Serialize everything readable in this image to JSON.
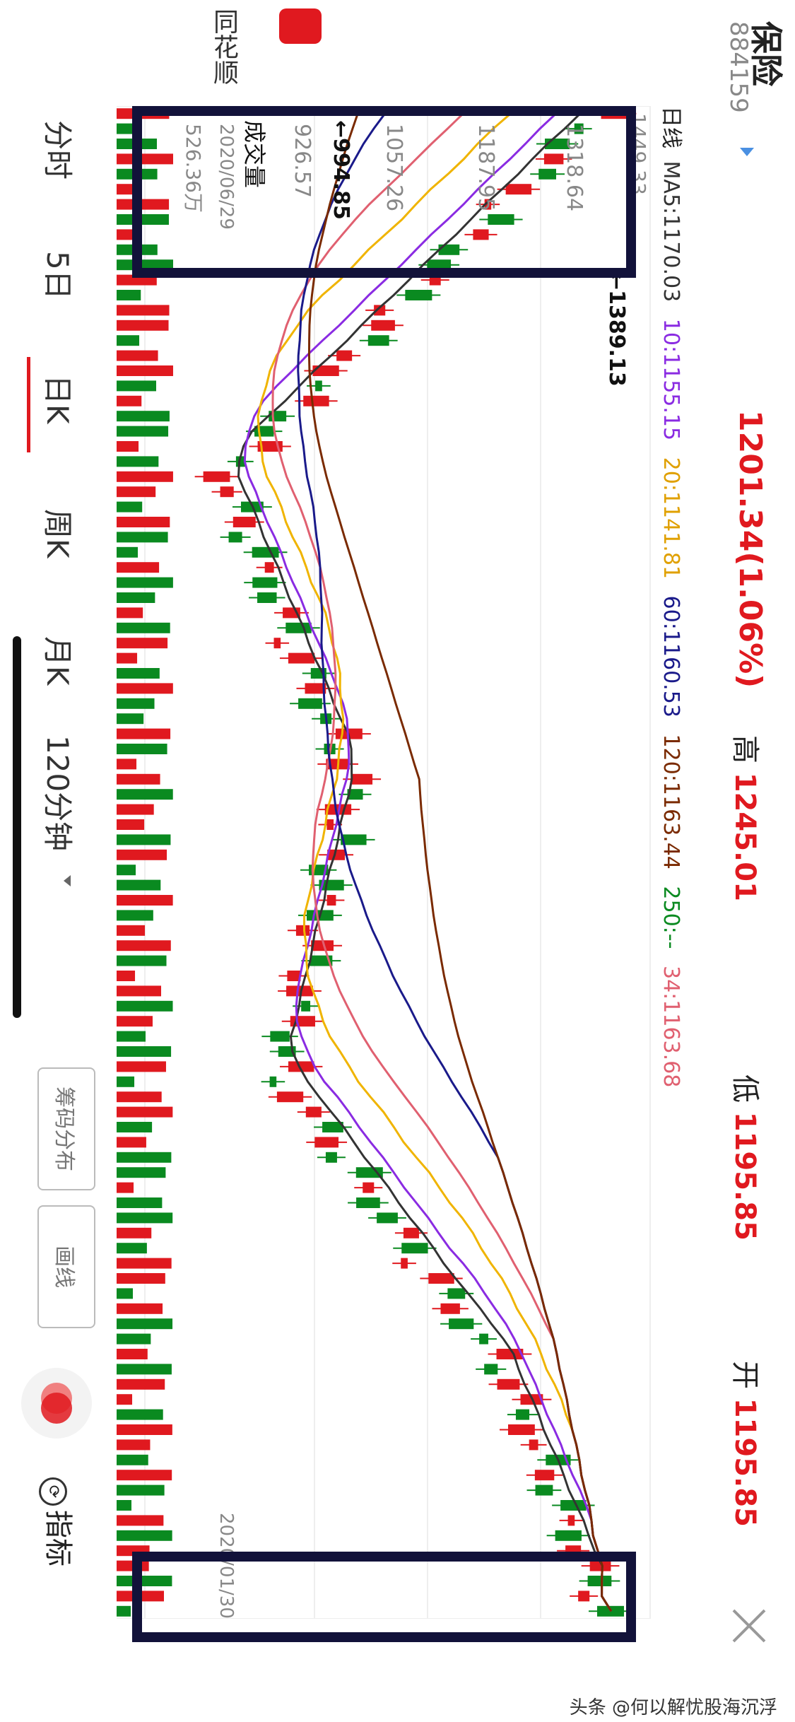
{
  "app": {
    "name": "同花顺"
  },
  "header": {
    "stock_name": "保险",
    "stock_code": "884159",
    "price": "1201.34(1.06%)",
    "high_label": "高",
    "high_value": "1245.01",
    "low_label": "低",
    "low_value": "1195.85",
    "open_label": "开",
    "open_value": "1195.85"
  },
  "ma_bar": {
    "period": "日线",
    "ma5": "MA5:1170.03",
    "ma10": "10:1155.15",
    "ma20": "20:1141.81",
    "ma60": "60:1160.53",
    "ma120": "120:1163.44",
    "ma250": "250:--",
    "ma34": "34:1163.68"
  },
  "axis": {
    "ticks": [
      "1318.64",
      "1187.95",
      "1057.26",
      "926.57"
    ],
    "max_marker": "←1389.13",
    "min_marker": "←994.85",
    "volume_label": "成交量",
    "volume_value": "526.36万",
    "date_start": "2020/01/30",
    "date_end": "2020/06/29",
    "partial_tick": "1449.33"
  },
  "tabs": [
    "分时",
    "5日",
    "日K",
    "周K",
    "月K",
    "120分钟"
  ],
  "active_tab": "日K",
  "tools": {
    "chips": "筹码分布",
    "draw": "画线",
    "indicator": "指标"
  },
  "watermark": "头条 @何以解忧股海沉浮",
  "colors": {
    "up": "#e0191f",
    "down": "#0a8a20",
    "ma5": "#333333",
    "ma10": "#8a2be2",
    "ma20": "#f0b400",
    "ma60": "#1a1a8a",
    "ma120": "#7a2a00",
    "ma34": "#e06070",
    "box": "#12123a"
  }
}
